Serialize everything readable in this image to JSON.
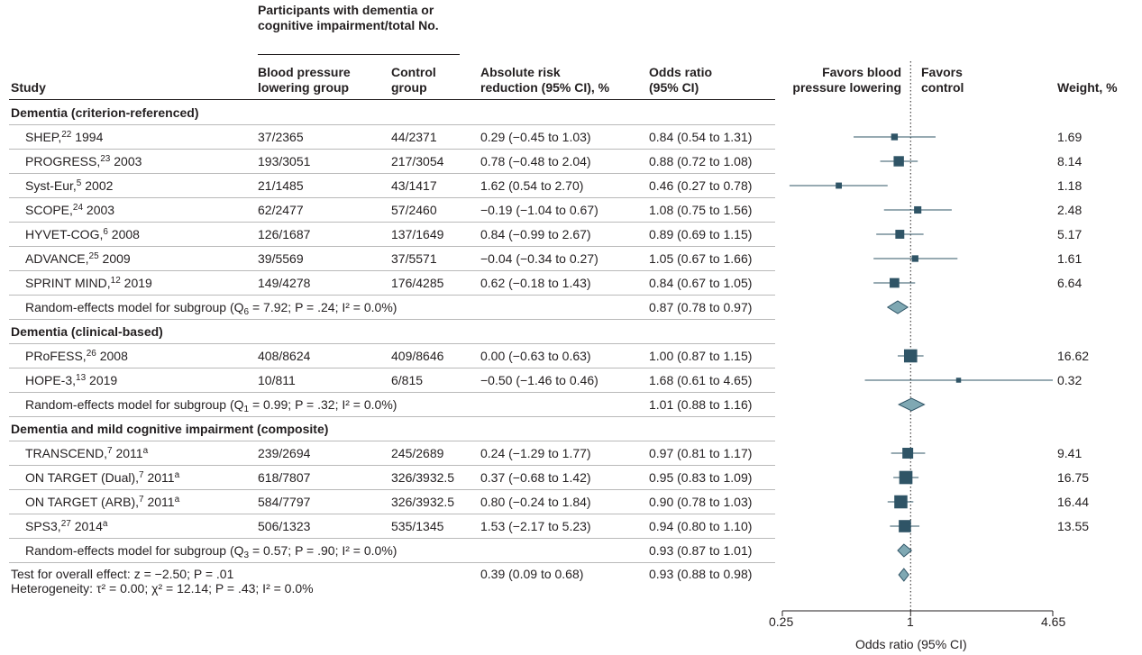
{
  "headers": {
    "participants_group": [
      "Participants with dementia or",
      "cognitive impairment/total No."
    ],
    "study": "Study",
    "bp_group": [
      "Blood pressure",
      "lowering group"
    ],
    "control_group": [
      "Control",
      "group"
    ],
    "arr": [
      "Absolute risk",
      "reduction (95% CI), %"
    ],
    "or": [
      "Odds ratio",
      "(95% CI)"
    ],
    "favors_bp": [
      "Favors blood",
      "pressure lowering"
    ],
    "favors_control": [
      "Favors",
      "control"
    ],
    "weight": "Weight, %"
  },
  "rows": [
    {
      "type": "group",
      "label": "Dementia (criterion-referenced)"
    },
    {
      "type": "study",
      "name": "SHEP,",
      "sup": "22",
      "year": " 1994",
      "bp": "37/2365",
      "ctrl": "44/2371",
      "arr": "0.29 (−0.45 to 1.03)",
      "or": "0.84 (0.54 to 1.31)",
      "weight": "1.69"
    },
    {
      "type": "study",
      "name": "PROGRESS,",
      "sup": "23",
      "year": " 2003",
      "bp": "193/3051",
      "ctrl": "217/3054",
      "arr": "0.78 (−0.48 to 2.04)",
      "or": "0.88 (0.72 to 1.08)",
      "weight": "8.14"
    },
    {
      "type": "study",
      "name": "Syst-Eur,",
      "sup": "5",
      "year": " 2002",
      "bp": "21/1485",
      "ctrl": "43/1417",
      "arr": "1.62 (0.54 to 2.70)",
      "or": "0.46 (0.27 to 0.78)",
      "weight": "1.18"
    },
    {
      "type": "study",
      "name": "SCOPE,",
      "sup": "24",
      "year": " 2003",
      "bp": "62/2477",
      "ctrl": "57/2460",
      "arr": "−0.19 (−1.04 to 0.67)",
      "or": "1.08 (0.75 to 1.56)",
      "weight": "2.48"
    },
    {
      "type": "study",
      "name": "HYVET-COG,",
      "sup": "6",
      "year": " 2008",
      "bp": "126/1687",
      "ctrl": "137/1649",
      "arr": "0.84 (−0.99 to 2.67)",
      "or": "0.89 (0.69 to 1.15)",
      "weight": "5.17"
    },
    {
      "type": "study",
      "name": "ADVANCE,",
      "sup": "25",
      "year": " 2009",
      "bp": "39/5569",
      "ctrl": "37/5571",
      "arr": "−0.04 (−0.34 to 0.27)",
      "or": "1.05 (0.67 to 1.66)",
      "weight": "1.61"
    },
    {
      "type": "study",
      "name": "SPRINT MIND,",
      "sup": "12",
      "year": " 2019",
      "bp": "149/4278",
      "ctrl": "176/4285",
      "arr": "0.62 (−0.18 to 1.43)",
      "or": "0.84 (0.67 to 1.05)",
      "weight": "6.64"
    },
    {
      "type": "subtotal",
      "label": "Random-effects model for subgroup (Q",
      "qsub": "6",
      "stats": " = 7.92; P = .24; I² = 0.0%)",
      "or": "0.87 (0.78 to 0.97)"
    },
    {
      "type": "group",
      "label": "Dementia (clinical-based)"
    },
    {
      "type": "study",
      "name": "PRoFESS,",
      "sup": "26",
      "year": " 2008",
      "bp": "408/8624",
      "ctrl": "409/8646",
      "arr": "0.00 (−0.63 to 0.63)",
      "or": "1.00 (0.87 to 1.15)",
      "weight": "16.62"
    },
    {
      "type": "study",
      "name": "HOPE-3,",
      "sup": "13",
      "year": " 2019",
      "bp": "10/811",
      "ctrl": "6/815",
      "arr": "−0.50 (−1.46 to 0.46)",
      "or": "1.68 (0.61 to 4.65)",
      "weight": "0.32"
    },
    {
      "type": "subtotal",
      "label": "Random-effects model for subgroup (Q",
      "qsub": "1",
      "stats": " = 0.99; P = .32; I² = 0.0%)",
      "or": "1.01 (0.88 to 1.16)"
    },
    {
      "type": "group",
      "label": "Dementia and mild cognitive impairment (composite)"
    },
    {
      "type": "study",
      "name": "TRANSCEND,",
      "sup": "7",
      "year": " 2011",
      "sup2": "a",
      "bp": "239/2694",
      "ctrl": "245/2689",
      "arr": "0.24 (−1.29 to 1.77)",
      "or": "0.97 (0.81 to 1.17)",
      "weight": "9.41"
    },
    {
      "type": "study",
      "name": "ON TARGET (Dual),",
      "sup": "7",
      "year": " 2011",
      "sup2": "a",
      "bp": "618/7807",
      "ctrl": "326/3932.5",
      "arr": "0.37 (−0.68 to 1.42)",
      "or": "0.95 (0.83 to 1.09)",
      "weight": "16.75"
    },
    {
      "type": "study",
      "name": "ON TARGET (ARB),",
      "sup": "7",
      "year": " 2011",
      "sup2": "a",
      "bp": "584/7797",
      "ctrl": "326/3932.5",
      "arr": "0.80 (−0.24 to 1.84)",
      "or": "0.90 (0.78 to 1.03)",
      "weight": "16.44"
    },
    {
      "type": "study",
      "name": "SPS3,",
      "sup": "27",
      "year": " 2014",
      "sup2": "a",
      "bp": "506/1323",
      "ctrl": "535/1345",
      "arr": "1.53 (−2.17 to 5.23)",
      "or": "0.94 (0.80 to 1.10)",
      "weight": "13.55"
    },
    {
      "type": "subtotal",
      "label": "Random-effects model for subgroup (Q",
      "qsub": "3",
      "stats": " = 0.57; P = .90; I² = 0.0%)",
      "or": "0.93 (0.87 to 1.01)"
    },
    {
      "type": "overall",
      "label": "Test for overall effect: z = −2.50; P = .01",
      "arr": "0.39 (0.09 to 0.68)",
      "or": "0.93 (0.88 to 0.98)",
      "heterogeneity": "Heterogeneity: τ² = 0.00; χ² = 12.14; P = .43; I² = 0.0%"
    }
  ],
  "axis": {
    "ticks": [
      "0.25",
      "1",
      "4.65"
    ],
    "label": "Odds ratio (95% CI)"
  },
  "colors": {
    "marker": "#2f5466",
    "diamond_fill": "#7fa8b3",
    "diamond_stroke": "#2f5466",
    "text": "#231f20",
    "rule": "#b9b9b9"
  },
  "chart_data": {
    "type": "forest",
    "xlabel": "Odds ratio (95% CI)",
    "xscale": "log",
    "xlim": [
      0.25,
      4.65
    ],
    "reference_line": 1,
    "studies": [
      {
        "study": "SHEP, 1994",
        "or": 0.84,
        "lo": 0.54,
        "hi": 1.31,
        "weight": 1.69
      },
      {
        "study": "PROGRESS, 2003",
        "or": 0.88,
        "lo": 0.72,
        "hi": 1.08,
        "weight": 8.14
      },
      {
        "study": "Syst-Eur, 2002",
        "or": 0.46,
        "lo": 0.27,
        "hi": 0.78,
        "weight": 1.18
      },
      {
        "study": "SCOPE, 2003",
        "or": 1.08,
        "lo": 0.75,
        "hi": 1.56,
        "weight": 2.48
      },
      {
        "study": "HYVET-COG, 2008",
        "or": 0.89,
        "lo": 0.69,
        "hi": 1.15,
        "weight": 5.17
      },
      {
        "study": "ADVANCE, 2009",
        "or": 1.05,
        "lo": 0.67,
        "hi": 1.66,
        "weight": 1.61
      },
      {
        "study": "SPRINT MIND, 2019",
        "or": 0.84,
        "lo": 0.67,
        "hi": 1.05,
        "weight": 6.64
      },
      {
        "study": "PRoFESS, 2008",
        "or": 1.0,
        "lo": 0.87,
        "hi": 1.15,
        "weight": 16.62
      },
      {
        "study": "HOPE-3, 2019",
        "or": 1.68,
        "lo": 0.61,
        "hi": 4.65,
        "weight": 0.32
      },
      {
        "study": "TRANSCEND, 2011",
        "or": 0.97,
        "lo": 0.81,
        "hi": 1.17,
        "weight": 9.41
      },
      {
        "study": "ON TARGET (Dual), 2011",
        "or": 0.95,
        "lo": 0.83,
        "hi": 1.09,
        "weight": 16.75
      },
      {
        "study": "ON TARGET (ARB), 2011",
        "or": 0.9,
        "lo": 0.78,
        "hi": 1.03,
        "weight": 16.44
      },
      {
        "study": "SPS3, 2014",
        "or": 0.94,
        "lo": 0.8,
        "hi": 1.1,
        "weight": 13.55
      }
    ],
    "subtotals": [
      {
        "label": "Dementia (criterion-referenced)",
        "or": 0.87,
        "lo": 0.78,
        "hi": 0.97
      },
      {
        "label": "Dementia (clinical-based)",
        "or": 1.01,
        "lo": 0.88,
        "hi": 1.16
      },
      {
        "label": "Dementia and mild cognitive impairment (composite)",
        "or": 0.93,
        "lo": 0.87,
        "hi": 1.01
      }
    ],
    "overall": {
      "or": 0.93,
      "lo": 0.88,
      "hi": 0.98
    }
  }
}
